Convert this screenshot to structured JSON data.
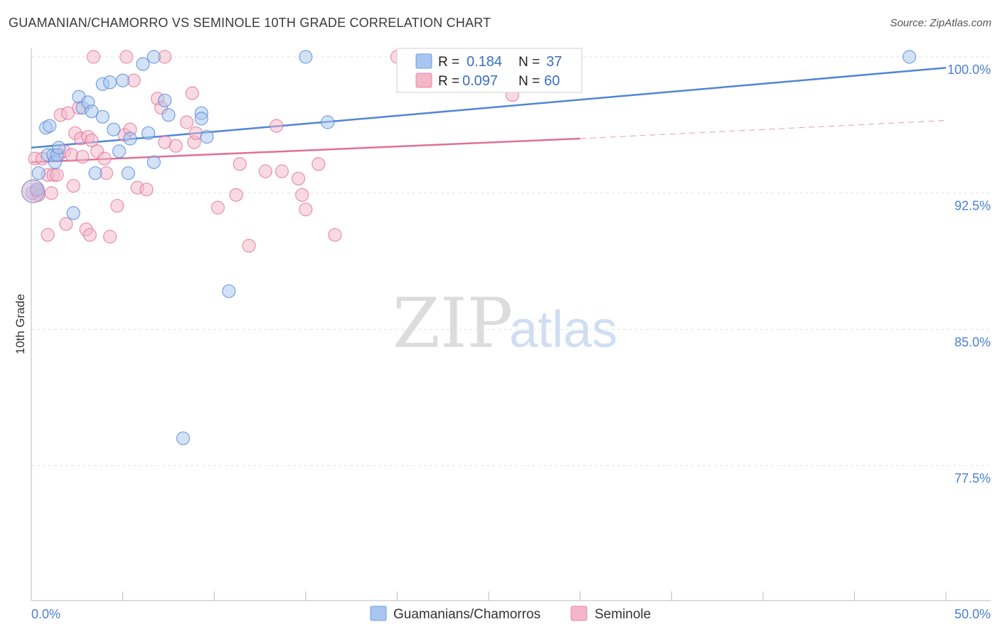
{
  "title": "GUAMANIAN/CHAMORRO VS SEMINOLE 10TH GRADE CORRELATION CHART",
  "source": "Source: ZipAtlas.com",
  "watermark": {
    "zip": "ZIP",
    "atlas": "atlas"
  },
  "legend_top": {
    "rows": [
      {
        "r_label": "R =",
        "r_value": "0.184",
        "n_label": "N =",
        "n_value": "37",
        "color": "#a8c6ef"
      },
      {
        "r_label": "R =",
        "r_value": "0.097",
        "n_label": "N =",
        "n_value": "60",
        "color": "#f4b6c8"
      }
    ]
  },
  "legend_bottom": {
    "items": [
      {
        "label": "Guamanians/Chamorros",
        "color": "#a8c6ef"
      },
      {
        "label": "Seminole",
        "color": "#f4b6c8"
      }
    ]
  },
  "chart_data": {
    "type": "scatter",
    "title": "GUAMANIAN/CHAMORRO VS SEMINOLE 10TH GRADE CORRELATION CHART",
    "xlabel": "",
    "ylabel": "10th Grade",
    "xlim": [
      0,
      50
    ],
    "ylim": [
      70,
      100.8
    ],
    "x_tick_labels": [
      "0.0%",
      "50.0%"
    ],
    "y_ticks": [
      77.5,
      85.0,
      92.5,
      100.0
    ],
    "y_tick_labels": [
      "77.5%",
      "85.0%",
      "92.5%",
      "100.0%"
    ],
    "grid": true,
    "legend": "top-center",
    "series": [
      {
        "name": "Guamanians/Chamorros",
        "color": "#4f86d6",
        "fill": "#a8c6ef",
        "points": [
          [
            0.3,
            92.7
          ],
          [
            0.4,
            93.6
          ],
          [
            0.8,
            96.1
          ],
          [
            0.9,
            94.6
          ],
          [
            1.0,
            96.2
          ],
          [
            1.2,
            94.6
          ],
          [
            1.3,
            94.2
          ],
          [
            1.4,
            94.6
          ],
          [
            1.5,
            95.0
          ],
          [
            2.3,
            91.4
          ],
          [
            2.6,
            97.8
          ],
          [
            2.8,
            97.2
          ],
          [
            3.1,
            97.5
          ],
          [
            3.3,
            97.0
          ],
          [
            3.5,
            93.6
          ],
          [
            3.9,
            96.7
          ],
          [
            3.9,
            98.5
          ],
          [
            4.3,
            98.6
          ],
          [
            4.5,
            96.0
          ],
          [
            4.8,
            94.8
          ],
          [
            5.0,
            98.7
          ],
          [
            5.3,
            93.6
          ],
          [
            5.4,
            95.5
          ],
          [
            6.1,
            99.6
          ],
          [
            6.4,
            95.8
          ],
          [
            6.7,
            94.2
          ],
          [
            6.7,
            100.0
          ],
          [
            7.3,
            97.6
          ],
          [
            7.5,
            96.8
          ],
          [
            8.3,
            79.0
          ],
          [
            9.3,
            96.9
          ],
          [
            9.3,
            96.6
          ],
          [
            9.6,
            95.6
          ],
          [
            10.8,
            87.1
          ],
          [
            15.0,
            100.0
          ],
          [
            16.2,
            96.4
          ],
          [
            48.0,
            100.0
          ]
        ],
        "trend": {
          "x": [
            0,
            50
          ],
          "y": [
            95.0,
            99.4
          ]
        }
      },
      {
        "name": "Seminole",
        "color": "#e07097",
        "fill": "#f4b6c8",
        "points": [
          [
            0.2,
            94.4
          ],
          [
            0.3,
            92.6
          ],
          [
            0.4,
            92.4
          ],
          [
            0.6,
            94.4
          ],
          [
            0.9,
            93.5
          ],
          [
            0.9,
            90.2
          ],
          [
            1.1,
            92.5
          ],
          [
            1.2,
            93.5
          ],
          [
            1.4,
            93.5
          ],
          [
            1.5,
            94.6
          ],
          [
            1.6,
            96.8
          ],
          [
            1.8,
            94.8
          ],
          [
            1.9,
            90.8
          ],
          [
            2.0,
            96.9
          ],
          [
            2.2,
            94.6
          ],
          [
            2.3,
            92.9
          ],
          [
            2.4,
            95.8
          ],
          [
            2.6,
            97.2
          ],
          [
            2.7,
            95.5
          ],
          [
            2.8,
            94.5
          ],
          [
            3.0,
            90.5
          ],
          [
            3.1,
            95.6
          ],
          [
            3.2,
            90.2
          ],
          [
            3.3,
            95.4
          ],
          [
            3.4,
            100.0
          ],
          [
            3.6,
            94.8
          ],
          [
            4.0,
            94.4
          ],
          [
            4.1,
            93.6
          ],
          [
            4.3,
            90.1
          ],
          [
            4.7,
            91.8
          ],
          [
            5.1,
            95.7
          ],
          [
            5.2,
            100.0
          ],
          [
            5.4,
            96.0
          ],
          [
            5.6,
            98.7
          ],
          [
            5.8,
            92.8
          ],
          [
            6.3,
            92.7
          ],
          [
            6.9,
            97.7
          ],
          [
            7.1,
            97.2
          ],
          [
            7.3,
            95.3
          ],
          [
            7.3,
            100.0
          ],
          [
            7.9,
            95.1
          ],
          [
            8.5,
            96.4
          ],
          [
            8.8,
            98.0
          ],
          [
            8.9,
            95.3
          ],
          [
            9.0,
            95.8
          ],
          [
            10.2,
            91.7
          ],
          [
            11.2,
            92.4
          ],
          [
            11.4,
            94.1
          ],
          [
            11.9,
            89.6
          ],
          [
            12.8,
            93.7
          ],
          [
            13.4,
            96.2
          ],
          [
            13.7,
            93.7
          ],
          [
            14.6,
            93.3
          ],
          [
            14.8,
            92.4
          ],
          [
            15.0,
            91.6
          ],
          [
            15.7,
            94.1
          ],
          [
            16.6,
            90.2
          ],
          [
            20.0,
            100.0
          ],
          [
            26.3,
            97.9
          ],
          [
            0.05,
            92.5
          ]
        ],
        "trend": {
          "x": [
            0,
            30
          ],
          "y": [
            94.2,
            95.5
          ]
        },
        "trend_dashed": {
          "x": [
            30,
            50
          ],
          "y": [
            95.5,
            96.5
          ]
        }
      }
    ]
  }
}
